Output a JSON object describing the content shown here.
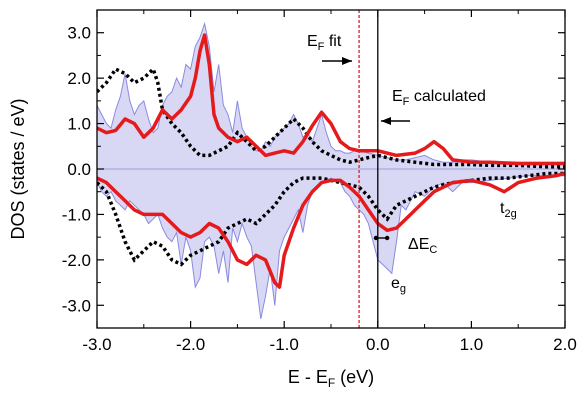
{
  "chart_data": {
    "type": "line",
    "xlabel": "E - E",
    "xlabel_sub": "F",
    "xlabel_unit": " (eV)",
    "ylabel": "DOS (states / eV)",
    "xlim": [
      -3.0,
      2.0
    ],
    "ylim": [
      -3.5,
      3.5
    ],
    "x_ticks": [
      -3.0,
      -2.0,
      -1.0,
      0.0,
      1.0,
      2.0
    ],
    "x_tick_labels": [
      "-3.0",
      "-2.0",
      "-1.0",
      "0.0",
      "1.0",
      "2.0"
    ],
    "y_ticks": [
      3.0,
      2.0,
      1.0,
      0.0,
      -1.0,
      -2.0,
      -3.0
    ],
    "y_tick_labels": [
      "3.0",
      "2.0",
      "1.0",
      "0.0",
      "-1.0",
      "-2.0",
      "-3.0"
    ],
    "ef_fit_x": -0.2,
    "ef_calc_x": 0.0,
    "annotations": {
      "ef_fit": {
        "main": "E",
        "sub": "F",
        "rest": " fit"
      },
      "ef_calc": {
        "main": "E",
        "sub": "F",
        "rest": " calculated"
      },
      "t2g": {
        "main": "t",
        "sub": "2g"
      },
      "eg": {
        "main": "e",
        "sub": "g"
      },
      "delta_ec": {
        "main": "ΔE",
        "sub": "C"
      }
    },
    "colors": {
      "fill": "#d8d8f5",
      "fill_edge": "#8a8ae0",
      "red_line": "#e41a1c",
      "dotted_line": "#000000",
      "ef_fit_line": "#e41a1c",
      "baseline": "#9aa0d8"
    },
    "series": [
      {
        "style": "filled_up",
        "x": [
          -3.0,
          -2.95,
          -2.9,
          -2.85,
          -2.8,
          -2.75,
          -2.7,
          -2.65,
          -2.6,
          -2.55,
          -2.5,
          -2.45,
          -2.4,
          -2.35,
          -2.3,
          -2.25,
          -2.2,
          -2.15,
          -2.1,
          -2.05,
          -2.0,
          -1.95,
          -1.9,
          -1.85,
          -1.8,
          -1.75,
          -1.7,
          -1.65,
          -1.6,
          -1.55,
          -1.5,
          -1.45,
          -1.4,
          -1.35,
          -1.3,
          -1.25,
          -1.2,
          -1.15,
          -1.1,
          -1.05,
          -1.0,
          -0.95,
          -0.9,
          -0.85,
          -0.8,
          -0.75,
          -0.7,
          -0.65,
          -0.6,
          -0.55,
          -0.5,
          -0.45,
          -0.4,
          -0.35,
          -0.3,
          -0.25,
          -0.2,
          -0.1,
          0.0,
          0.1,
          0.2,
          0.3,
          0.4,
          0.5,
          0.6,
          0.7,
          0.8,
          0.9,
          1.0,
          1.2,
          1.4,
          1.6,
          1.8,
          2.0
        ],
        "y": [
          1.4,
          1.2,
          1.0,
          0.9,
          1.3,
          1.6,
          2.1,
          1.5,
          1.2,
          1.4,
          1.5,
          1.1,
          0.8,
          0.9,
          1.4,
          1.6,
          1.7,
          2.0,
          1.8,
          2.3,
          2.2,
          2.7,
          2.9,
          3.2,
          2.7,
          1.7,
          2.3,
          1.4,
          1.2,
          0.8,
          1.5,
          0.9,
          0.7,
          0.5,
          0.4,
          0.4,
          0.6,
          0.5,
          0.7,
          0.8,
          0.9,
          1.0,
          1.2,
          1.0,
          0.7,
          0.8,
          0.6,
          0.9,
          1.2,
          0.8,
          0.5,
          0.4,
          0.4,
          0.35,
          0.35,
          0.4,
          0.4,
          0.35,
          0.3,
          0.25,
          0.2,
          0.2,
          0.25,
          0.3,
          0.2,
          0.15,
          0.15,
          0.2,
          0.2,
          0.15,
          0.15,
          0.15,
          0.15,
          0.15
        ]
      },
      {
        "style": "filled_down",
        "x": [
          -3.0,
          -2.95,
          -2.9,
          -2.85,
          -2.8,
          -2.75,
          -2.7,
          -2.65,
          -2.6,
          -2.55,
          -2.5,
          -2.45,
          -2.4,
          -2.35,
          -2.3,
          -2.25,
          -2.2,
          -2.15,
          -2.1,
          -2.05,
          -2.0,
          -1.95,
          -1.9,
          -1.85,
          -1.8,
          -1.75,
          -1.7,
          -1.65,
          -1.6,
          -1.55,
          -1.5,
          -1.45,
          -1.4,
          -1.35,
          -1.3,
          -1.25,
          -1.2,
          -1.15,
          -1.1,
          -1.05,
          -1.0,
          -0.95,
          -0.9,
          -0.85,
          -0.8,
          -0.75,
          -0.7,
          -0.65,
          -0.6,
          -0.55,
          -0.5,
          -0.45,
          -0.4,
          -0.35,
          -0.3,
          -0.25,
          -0.2,
          -0.15,
          -0.1,
          -0.05,
          0.0,
          0.05,
          0.1,
          0.15,
          0.2,
          0.25,
          0.3,
          0.35,
          0.4,
          0.5,
          0.6,
          0.7,
          0.8,
          0.9,
          1.0,
          1.2,
          1.4,
          1.6,
          1.8,
          2.0
        ],
        "y": [
          -0.3,
          -0.5,
          -0.6,
          -0.5,
          -0.7,
          -0.8,
          -0.9,
          -0.7,
          -0.8,
          -0.9,
          -1.0,
          -1.2,
          -1.1,
          -1.0,
          -1.3,
          -1.5,
          -1.6,
          -1.4,
          -2.1,
          -1.5,
          -1.8,
          -2.6,
          -2.4,
          -1.6,
          -1.5,
          -1.7,
          -2.3,
          -1.8,
          -2.5,
          -1.3,
          -1.6,
          -1.2,
          -1.5,
          -1.7,
          -2.5,
          -3.3,
          -2.8,
          -2.2,
          -3.0,
          -1.8,
          -1.5,
          -1.3,
          -1.1,
          -0.9,
          -1.4,
          -0.8,
          -0.5,
          -0.4,
          -0.3,
          -0.25,
          -0.2,
          -0.25,
          -0.3,
          -0.5,
          -0.6,
          -0.8,
          -0.9,
          -1.0,
          -1.2,
          -1.6,
          -2.0,
          -2.1,
          -2.2,
          -2.3,
          -1.6,
          -0.8,
          -0.9,
          -0.7,
          -0.5,
          -0.6,
          -0.4,
          -0.3,
          -0.5,
          -0.3,
          -0.3,
          -0.25,
          -0.2,
          -0.15,
          -0.15,
          -0.15
        ]
      },
      {
        "style": "red_up",
        "x": [
          -3.0,
          -2.9,
          -2.8,
          -2.7,
          -2.6,
          -2.5,
          -2.4,
          -2.3,
          -2.2,
          -2.1,
          -2.0,
          -1.95,
          -1.9,
          -1.85,
          -1.8,
          -1.75,
          -1.7,
          -1.6,
          -1.5,
          -1.4,
          -1.3,
          -1.2,
          -1.1,
          -1.0,
          -0.9,
          -0.8,
          -0.7,
          -0.6,
          -0.5,
          -0.4,
          -0.3,
          -0.2,
          -0.1,
          0.0,
          0.2,
          0.4,
          0.5,
          0.6,
          0.7,
          0.8,
          1.0,
          1.2,
          1.5,
          1.8,
          2.0
        ],
        "y": [
          0.9,
          0.8,
          0.85,
          1.1,
          1.0,
          0.7,
          0.9,
          1.3,
          1.1,
          1.3,
          1.6,
          2.0,
          2.6,
          2.95,
          2.3,
          1.2,
          0.9,
          0.7,
          0.6,
          0.7,
          0.5,
          0.3,
          0.35,
          0.4,
          0.35,
          0.6,
          0.95,
          1.25,
          1.0,
          0.6,
          0.45,
          0.4,
          0.4,
          0.4,
          0.3,
          0.35,
          0.45,
          0.6,
          0.45,
          0.2,
          0.15,
          0.15,
          0.12,
          0.12,
          0.12
        ]
      },
      {
        "style": "red_down",
        "x": [
          -3.0,
          -2.9,
          -2.8,
          -2.7,
          -2.6,
          -2.5,
          -2.4,
          -2.3,
          -2.2,
          -2.1,
          -2.0,
          -1.9,
          -1.8,
          -1.7,
          -1.6,
          -1.5,
          -1.4,
          -1.3,
          -1.2,
          -1.1,
          -1.05,
          -1.0,
          -0.9,
          -0.8,
          -0.7,
          -0.6,
          -0.5,
          -0.4,
          -0.3,
          -0.2,
          -0.1,
          0.0,
          0.1,
          0.2,
          0.3,
          0.4,
          0.5,
          0.6,
          0.7,
          0.8,
          1.0,
          1.2,
          1.35,
          1.5,
          1.7,
          1.9,
          2.0
        ],
        "y": [
          -0.2,
          -0.3,
          -0.5,
          -0.7,
          -0.9,
          -1.0,
          -1.0,
          -1.0,
          -1.2,
          -1.4,
          -1.5,
          -1.4,
          -1.2,
          -1.3,
          -1.6,
          -2.0,
          -2.1,
          -1.9,
          -2.0,
          -2.5,
          -2.6,
          -1.9,
          -1.3,
          -0.8,
          -0.5,
          -0.3,
          -0.25,
          -0.25,
          -0.4,
          -0.6,
          -0.9,
          -1.2,
          -1.35,
          -1.3,
          -1.1,
          -0.9,
          -0.7,
          -0.5,
          -0.4,
          -0.3,
          -0.25,
          -0.35,
          -0.5,
          -0.3,
          -0.2,
          -0.15,
          -0.1
        ]
      },
      {
        "style": "dotted_up",
        "x": [
          -3.0,
          -2.9,
          -2.8,
          -2.7,
          -2.6,
          -2.5,
          -2.4,
          -2.35,
          -2.3,
          -2.2,
          -2.1,
          -2.0,
          -1.9,
          -1.8,
          -1.7,
          -1.6,
          -1.5,
          -1.4,
          -1.3,
          -1.2,
          -1.1,
          -1.0,
          -0.9,
          -0.8,
          -0.7,
          -0.6,
          -0.5,
          -0.4,
          -0.3,
          -0.2,
          -0.1,
          0.0,
          0.2,
          0.4,
          0.6,
          0.8,
          1.0,
          1.2,
          1.5,
          1.8,
          2.0
        ],
        "y": [
          1.7,
          1.9,
          2.2,
          2.1,
          1.9,
          2.0,
          2.2,
          1.9,
          1.3,
          1.0,
          0.8,
          0.5,
          0.3,
          0.3,
          0.4,
          0.5,
          0.8,
          0.6,
          0.4,
          0.5,
          0.7,
          0.9,
          1.1,
          0.9,
          0.6,
          0.4,
          0.3,
          0.2,
          0.15,
          0.2,
          0.25,
          0.3,
          0.2,
          0.15,
          0.1,
          0.1,
          0.1,
          0.08,
          0.08,
          0.05,
          0.05
        ]
      },
      {
        "style": "dotted_down",
        "x": [
          -3.0,
          -2.9,
          -2.8,
          -2.7,
          -2.6,
          -2.5,
          -2.4,
          -2.3,
          -2.2,
          -2.1,
          -2.0,
          -1.9,
          -1.8,
          -1.7,
          -1.6,
          -1.5,
          -1.4,
          -1.3,
          -1.2,
          -1.1,
          -1.0,
          -0.9,
          -0.8,
          -0.7,
          -0.6,
          -0.5,
          -0.4,
          -0.3,
          -0.2,
          -0.1,
          0.0,
          0.1,
          0.2,
          0.4,
          0.6,
          0.8,
          1.0,
          1.2,
          1.4,
          1.6,
          1.8,
          2.0
        ],
        "y": [
          -0.3,
          -0.5,
          -1.0,
          -1.6,
          -2.0,
          -1.8,
          -1.6,
          -1.7,
          -2.0,
          -2.1,
          -1.9,
          -1.8,
          -1.7,
          -1.6,
          -1.3,
          -1.2,
          -1.1,
          -1.2,
          -1.0,
          -0.8,
          -0.5,
          -0.3,
          -0.2,
          -0.2,
          -0.2,
          -0.25,
          -0.3,
          -0.35,
          -0.4,
          -0.6,
          -0.9,
          -1.1,
          -0.8,
          -0.6,
          -0.4,
          -0.3,
          -0.25,
          -0.2,
          -0.2,
          -0.15,
          -0.1,
          -0.1
        ]
      }
    ]
  }
}
